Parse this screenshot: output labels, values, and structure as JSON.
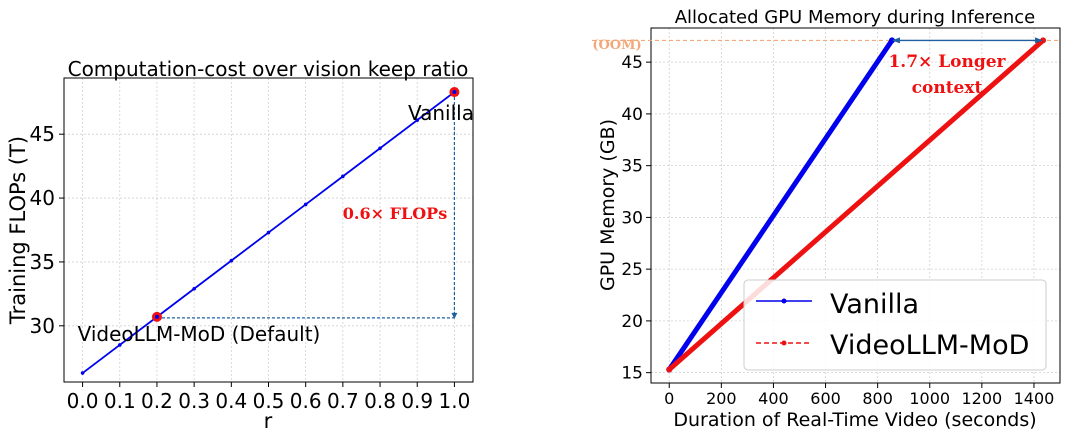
{
  "chart_data": [
    {
      "type": "line",
      "title": "Computation-cost over vision keep ratio",
      "xlabel": "r",
      "ylabel": "Training FLOPs (T)",
      "xlim": [
        -0.05,
        1.05
      ],
      "ylim": [
        25.6,
        49.4
      ],
      "x_ticks": [
        0.0,
        0.1,
        0.2,
        0.3,
        0.4,
        0.5,
        0.6,
        0.7,
        0.8,
        0.9,
        1.0
      ],
      "x_tick_labels": [
        "0.0",
        "0.1",
        "0.2",
        "0.3",
        "0.4",
        "0.5",
        "0.6",
        "0.7",
        "0.8",
        "0.9",
        "1.0"
      ],
      "y_ticks": [
        30,
        35,
        40,
        45
      ],
      "y_tick_labels": [
        "30",
        "35",
        "40",
        "45"
      ],
      "grid": true,
      "line_color": "#0000ee",
      "series": [
        {
          "x": [
            0.0,
            0.1,
            0.2,
            0.3,
            0.4,
            0.5,
            0.6,
            0.7,
            0.8,
            0.9,
            1.0
          ],
          "y": [
            26.3,
            28.5,
            30.7,
            32.9,
            35.1,
            37.3,
            39.5,
            41.7,
            43.9,
            46.1,
            48.3
          ]
        }
      ],
      "highlight_points": [
        {
          "x": 0.2,
          "y": 30.7,
          "label": "VideoLLM-MoD (Default)",
          "color": "#ee1111"
        },
        {
          "x": 1.0,
          "y": 48.3,
          "label": "Vanilla",
          "color": "#ee1111"
        }
      ],
      "annotation": {
        "text": "0.6× FLOPs",
        "color": "#ee1111"
      },
      "bracket_color": "#1f5fa0"
    },
    {
      "type": "line",
      "title": "Allocated GPU Memory during Inference",
      "xlabel": "Duration of Real-Time Video (seconds)",
      "ylabel": "GPU Memory (GB)",
      "xlim": [
        -70,
        1500
      ],
      "ylim": [
        14.0,
        48.3
      ],
      "x_ticks": [
        0,
        200,
        400,
        600,
        800,
        1000,
        1200,
        1400
      ],
      "x_tick_labels": [
        "0",
        "200",
        "400",
        "600",
        "800",
        "1000",
        "1200",
        "1400"
      ],
      "y_ticks": [
        15,
        20,
        25,
        30,
        35,
        40,
        45
      ],
      "y_tick_labels": [
        "15",
        "20",
        "25",
        "30",
        "35",
        "40",
        "45"
      ],
      "grid": true,
      "oom_line": {
        "y": 47.1,
        "label": "(OOM)",
        "color": "#f2a878"
      },
      "legend_position": "lower-right",
      "series": [
        {
          "name": "Vanilla",
          "color": "#0000ee",
          "x": [
            0,
            855
          ],
          "y": [
            15.3,
            47.1
          ]
        },
        {
          "name": "VideoLLM-MoD",
          "color": "#ee1111",
          "x": [
            0,
            1435
          ],
          "y": [
            15.3,
            47.1
          ]
        }
      ],
      "annotation": {
        "line1": "1.7× Longer",
        "line2": "context",
        "color": "#ee1111"
      },
      "arrow_color": "#1f5fa0"
    }
  ]
}
